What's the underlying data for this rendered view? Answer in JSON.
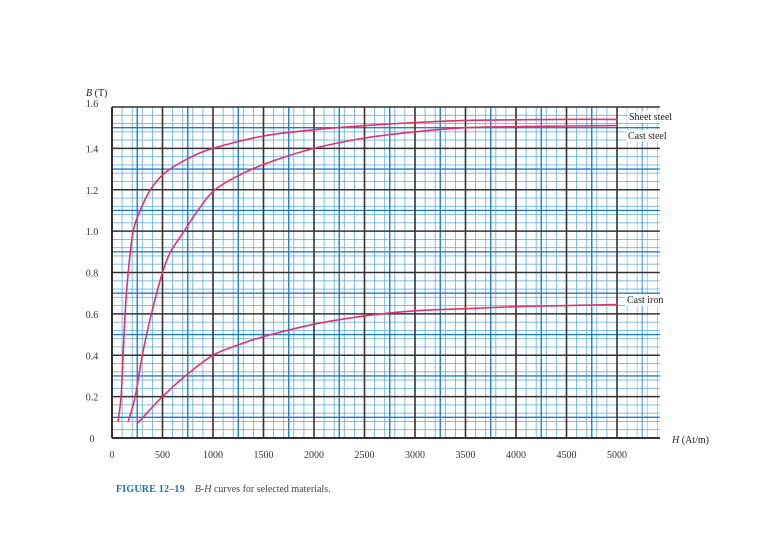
{
  "chart_data": {
    "type": "line",
    "title": "B-H curves for selected materials.",
    "figure_label": "FIGURE 12–19",
    "caption_italic": "B-H",
    "caption_rest": " curves for selected materials.",
    "xlabel": "H (At/m)",
    "xlabel_italic": "H",
    "xlabel_unit": " (At/m)",
    "ylabel": "B (T)",
    "ylabel_italic": "B",
    "ylabel_unit": " (T)",
    "xlim": [
      0,
      5425
    ],
    "ylim": [
      0,
      1.6
    ],
    "x_ticks": [
      0,
      500,
      1000,
      1500,
      2000,
      2500,
      3000,
      3500,
      4000,
      4500,
      5000
    ],
    "y_ticks": [
      0,
      0.2,
      0.4,
      0.6,
      0.8,
      1.0,
      1.2,
      1.4,
      1.6
    ],
    "y_tick_labels": [
      "0",
      "0.2",
      "0.4",
      "0.6",
      "0.8",
      "1.0",
      "1.2",
      "1.4",
      "1.6"
    ],
    "grid": true,
    "legend_position": "inline-right",
    "series": [
      {
        "name": "Sheet steel",
        "color": "#e0336e",
        "points": [
          [
            60,
            0.08
          ],
          [
            90,
            0.2
          ],
          [
            110,
            0.4
          ],
          [
            130,
            0.6
          ],
          [
            160,
            0.8
          ],
          [
            210,
            1.0
          ],
          [
            280,
            1.1
          ],
          [
            380,
            1.2
          ],
          [
            520,
            1.28
          ],
          [
            750,
            1.35
          ],
          [
            1000,
            1.4
          ],
          [
            1500,
            1.46
          ],
          [
            2000,
            1.49
          ],
          [
            2500,
            1.51
          ],
          [
            3000,
            1.525
          ],
          [
            3500,
            1.535
          ],
          [
            4000,
            1.538
          ],
          [
            4500,
            1.54
          ],
          [
            5000,
            1.54
          ]
        ]
      },
      {
        "name": "Cast steel",
        "color": "#e0336e",
        "points": [
          [
            160,
            0.08
          ],
          [
            230,
            0.2
          ],
          [
            300,
            0.4
          ],
          [
            390,
            0.6
          ],
          [
            500,
            0.8
          ],
          [
            580,
            0.9
          ],
          [
            715,
            1.0
          ],
          [
            850,
            1.1
          ],
          [
            1020,
            1.2
          ],
          [
            1300,
            1.28
          ],
          [
            1600,
            1.34
          ],
          [
            2000,
            1.4
          ],
          [
            2500,
            1.45
          ],
          [
            3000,
            1.48
          ],
          [
            3500,
            1.5
          ],
          [
            4000,
            1.505
          ],
          [
            4500,
            1.508
          ],
          [
            5000,
            1.51
          ]
        ]
      },
      {
        "name": "Cast iron",
        "color": "#e0336e",
        "points": [
          [
            250,
            0.07
          ],
          [
            500,
            0.2
          ],
          [
            750,
            0.31
          ],
          [
            1000,
            0.4
          ],
          [
            1250,
            0.45
          ],
          [
            1500,
            0.49
          ],
          [
            2000,
            0.55
          ],
          [
            2500,
            0.59
          ],
          [
            3000,
            0.615
          ],
          [
            3500,
            0.625
          ],
          [
            4000,
            0.635
          ],
          [
            4500,
            0.64
          ],
          [
            5000,
            0.645
          ]
        ]
      }
    ],
    "colors": {
      "major_grid": "#333333",
      "minor_grid": "#58a8e0",
      "mid_grid": "#1f7fc4",
      "curve": "#e0336e",
      "caption_label": "#2a6db3"
    }
  }
}
